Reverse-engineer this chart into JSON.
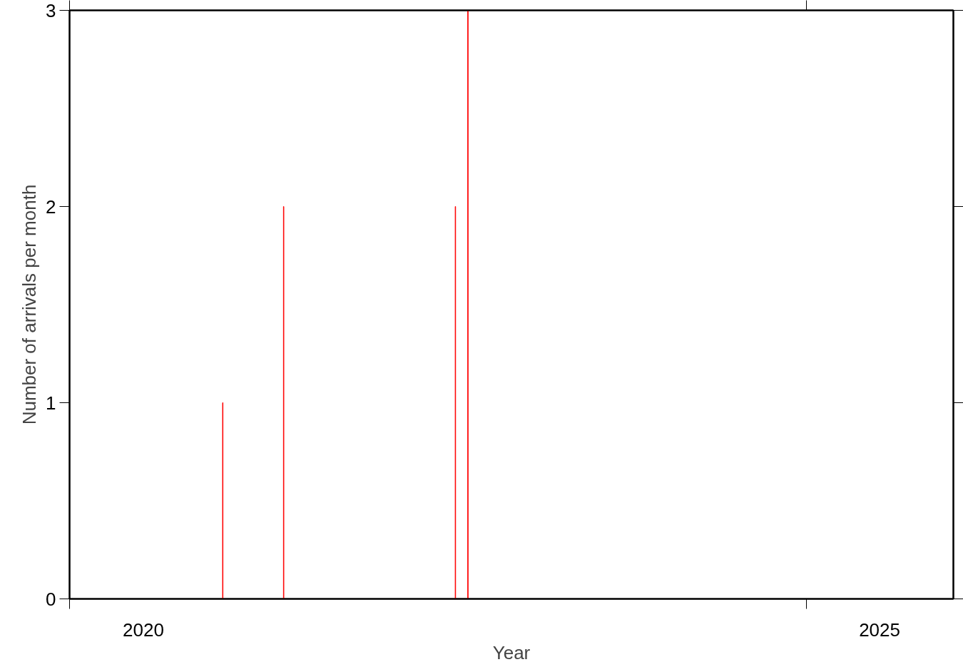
{
  "chart_data": {
    "type": "bar",
    "xlabel": "Year",
    "ylabel": "Number of arrivals per month",
    "x": [
      "2021-01-15",
      "2021-06-15",
      "2022-08-15",
      "2022-09-15"
    ],
    "values": [
      1,
      2,
      2,
      3
    ],
    "color": "#ff0000",
    "xlim": [
      "2020-01-01",
      "2026-01-01"
    ],
    "xticks": [
      {
        "value": "2020-01-01",
        "label": null
      },
      {
        "value": "2020-07-02",
        "label": "2020"
      },
      {
        "value": "2025-01-01",
        "label": null
      },
      {
        "value": "2025-07-02",
        "label": "2025"
      }
    ],
    "ylim": [
      0,
      3
    ],
    "yticks": [
      0,
      1,
      2,
      3
    ],
    "grid": false
  }
}
